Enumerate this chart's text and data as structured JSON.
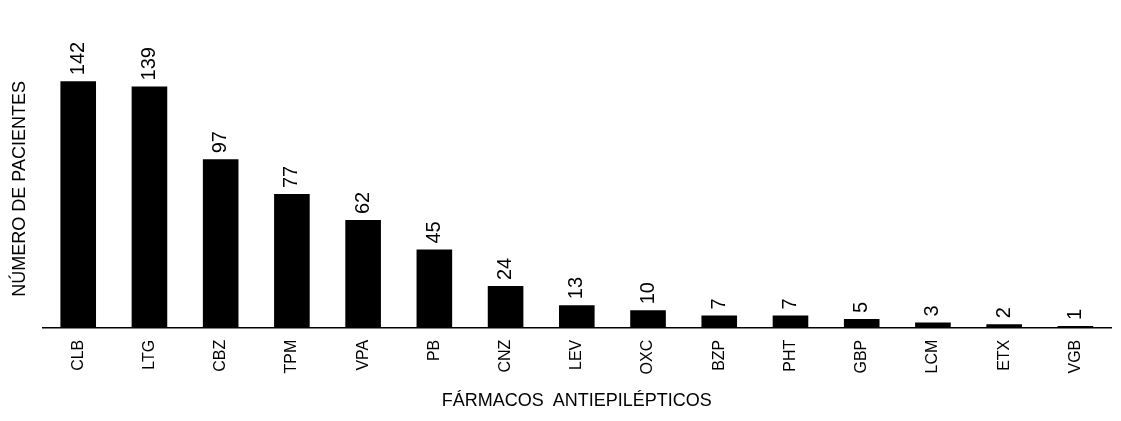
{
  "chart_data": {
    "type": "bar",
    "xlabel": "FÁRMACOS  ANTIEPILÉPTICOS",
    "ylabel": "NÚMERO DE PACIENTES",
    "categories": [
      "CLB",
      "LTG",
      "CBZ",
      "TPM",
      "VPA",
      "PB",
      "CNZ",
      "LEV",
      "OXC",
      "BZP",
      "PHT",
      "GBP",
      "LCM",
      "ETX",
      "VGB"
    ],
    "values": [
      142,
      139,
      97,
      77,
      62,
      45,
      24,
      13,
      10,
      7,
      7,
      5,
      3,
      2,
      1
    ],
    "color": "#000000",
    "data_labels": true,
    "grid": false,
    "legend": false
  }
}
